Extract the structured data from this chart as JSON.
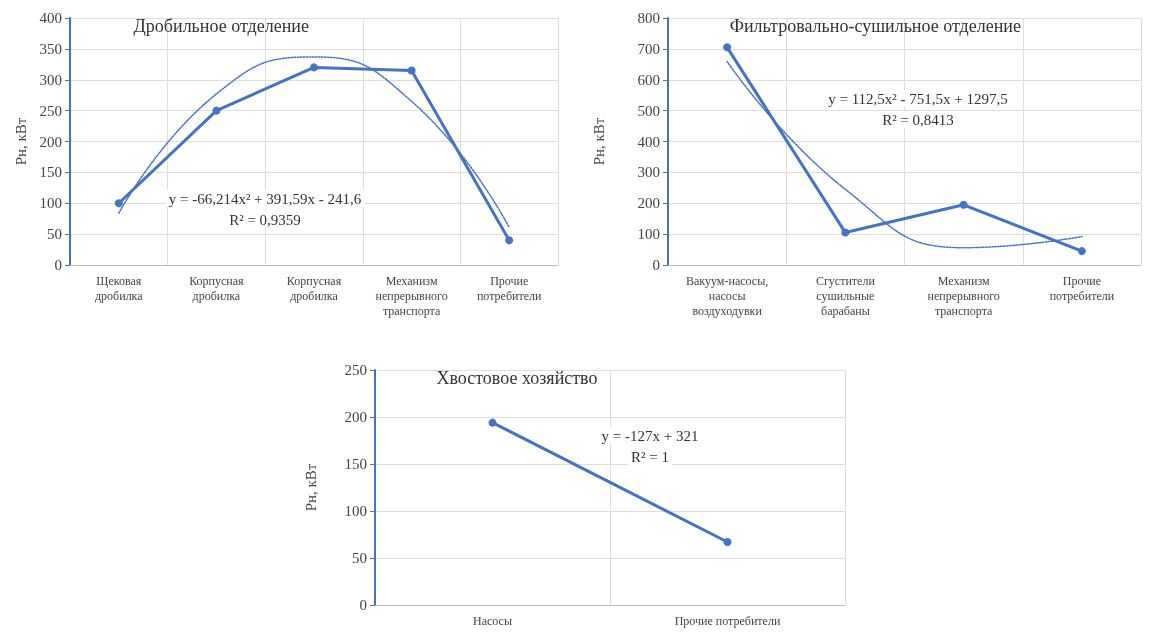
{
  "chart_data": [
    {
      "type": "line",
      "title": "Дробильное отделение",
      "ylabel": "Рн, кВт",
      "categories": [
        "Щековая дробилка",
        "Корпусная дробилка",
        "Корпусная дробилка",
        "Механизм непрерывного транспорта",
        "Прочие потребители"
      ],
      "ylim": [
        0,
        400
      ],
      "yticks": [
        0,
        50,
        100,
        150,
        200,
        250,
        300,
        350,
        400
      ],
      "grid": true,
      "annotations": [
        "y = -66,214x² + 391,59x - 241,6",
        "R² = 0,9359"
      ],
      "series": [
        {
          "color": "#4472c4",
          "values": [
            100,
            250,
            320,
            315,
            40
          ],
          "marker": "circle",
          "line_style": "solid"
        },
        {
          "color": "#4472c4",
          "values": [
            84,
            277,
            337,
            265,
            61
          ],
          "marker": "none",
          "line_style": "dotted"
        }
      ]
    },
    {
      "type": "line",
      "title": "Фильтровально-сушильное отделение",
      "ylabel": "Рн, кВт",
      "categories": [
        "Вакуум-насосы, насосы воздуходувки",
        "Сгустители сушильные барабаны",
        "Механизм непрерывного транспорта",
        "Прочие потребители"
      ],
      "ylim": [
        0,
        800
      ],
      "yticks": [
        0,
        100,
        200,
        300,
        400,
        500,
        600,
        700,
        800
      ],
      "grid": true,
      "annotations": [
        "y = 112,5x² - 751,5x + 1297,5",
        "R² = 0,8413"
      ],
      "series": [
        {
          "color": "#4472c4",
          "values": [
            705,
            105,
            195,
            45
          ],
          "marker": "circle",
          "line_style": "solid"
        },
        {
          "color": "#4472c4",
          "values": [
            659,
            245,
            56,
            92
          ],
          "marker": "none",
          "line_style": "dotted"
        }
      ]
    },
    {
      "type": "line",
      "title": "Хвостовое хозяйство",
      "ylabel": "Рн, кВт",
      "categories": [
        "Насосы",
        "Прочие потребители"
      ],
      "ylim": [
        0,
        250
      ],
      "yticks": [
        0,
        50,
        100,
        150,
        200,
        250
      ],
      "grid": true,
      "annotations": [
        "y = -127x + 321",
        "R² = 1"
      ],
      "series": [
        {
          "color": "#4472c4",
          "values": [
            194,
            67
          ],
          "marker": "circle",
          "line_style": "solid"
        }
      ]
    }
  ]
}
